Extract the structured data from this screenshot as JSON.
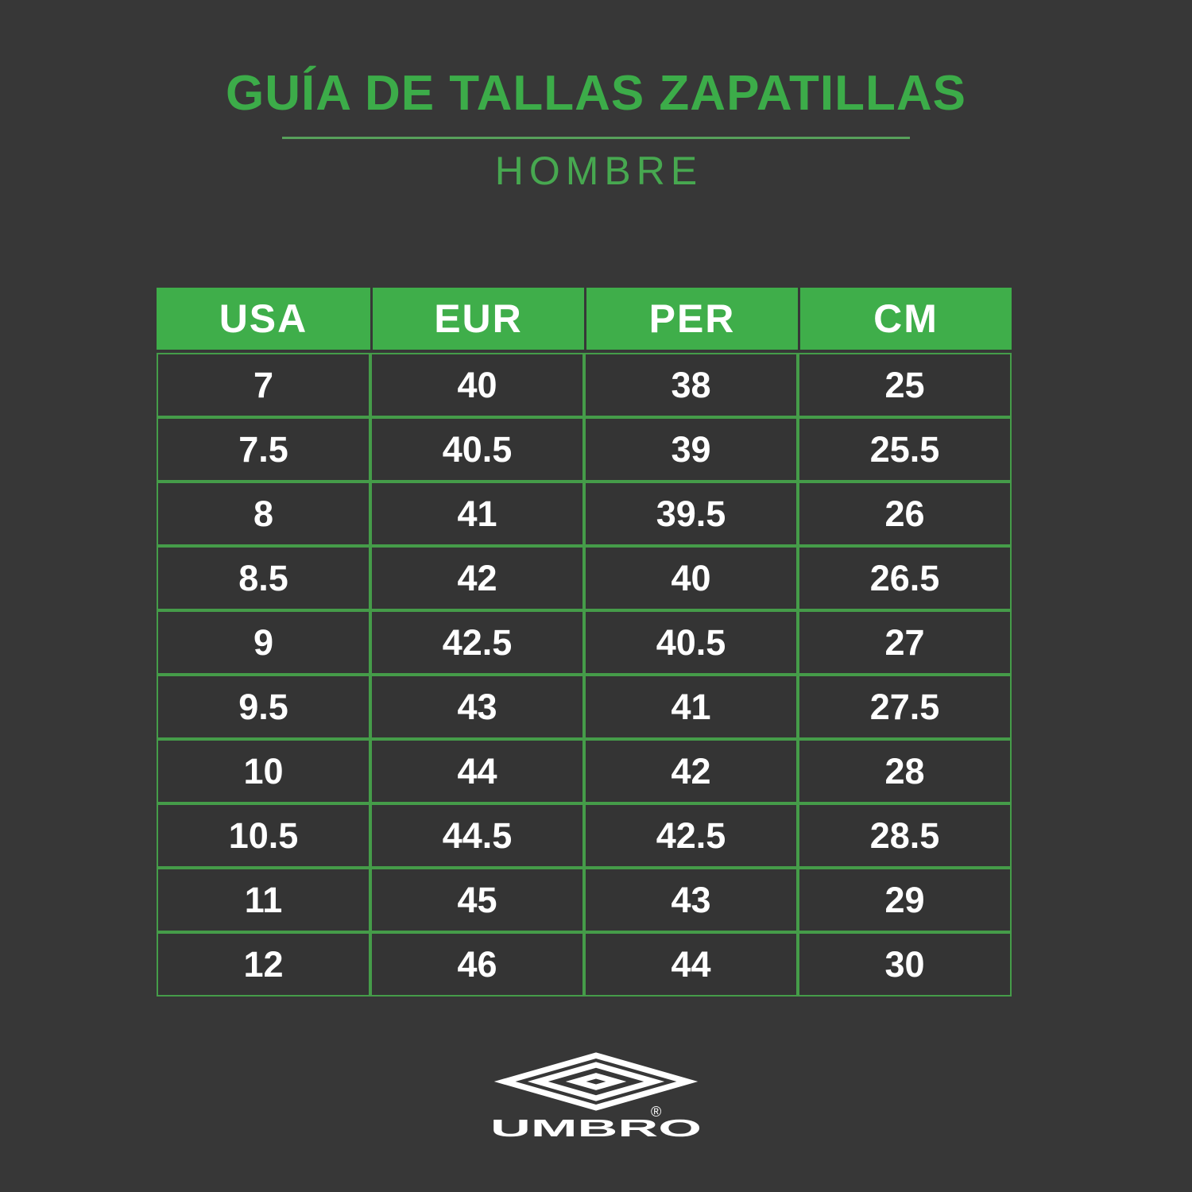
{
  "colors": {
    "background": "#373737",
    "cell_background": "#343434",
    "table_header_background": "#3FAE4A",
    "table_border": "#459C49",
    "title_green": "#3CAC49",
    "subtitle_green": "#47A850",
    "underline_green": "#57A05B",
    "text_white": "#FFFFFF"
  },
  "header": {
    "title": "GUÍA DE TALLAS ZAPATILLAS",
    "subtitle": "HOMBRE"
  },
  "size_table": {
    "columns": [
      "USA",
      "EUR",
      "PER",
      "CM"
    ],
    "rows": [
      [
        "7",
        "40",
        "38",
        "25"
      ],
      [
        "7.5",
        "40.5",
        "39",
        "25.5"
      ],
      [
        "8",
        "41",
        "39.5",
        "26"
      ],
      [
        "8.5",
        "42",
        "40",
        "26.5"
      ],
      [
        "9",
        "42.5",
        "40.5",
        "27"
      ],
      [
        "9.5",
        "43",
        "41",
        "27.5"
      ],
      [
        "10",
        "44",
        "42",
        "28"
      ],
      [
        "10.5",
        "44.5",
        "42.5",
        "28.5"
      ],
      [
        "11",
        "45",
        "43",
        "29"
      ],
      [
        "12",
        "46",
        "44",
        "30"
      ]
    ]
  },
  "footer": {
    "brand_wordmark": "UMBRO",
    "registered_mark": "®"
  },
  "chart_data": {
    "type": "table",
    "title": "GUÍA DE TALLAS ZAPATILLAS — HOMBRE",
    "columns": [
      "USA",
      "EUR",
      "PER",
      "CM"
    ],
    "rows": [
      [
        7,
        40,
        38,
        25
      ],
      [
        7.5,
        40.5,
        39,
        25.5
      ],
      [
        8,
        41,
        39.5,
        26
      ],
      [
        8.5,
        42,
        40,
        26.5
      ],
      [
        9,
        42.5,
        40.5,
        27
      ],
      [
        9.5,
        43,
        41,
        27.5
      ],
      [
        10,
        44,
        42,
        28
      ],
      [
        10.5,
        44.5,
        42.5,
        28.5
      ],
      [
        11,
        45,
        43,
        29
      ],
      [
        12,
        46,
        44,
        30
      ]
    ],
    "legend_position": "none",
    "grid": true
  }
}
